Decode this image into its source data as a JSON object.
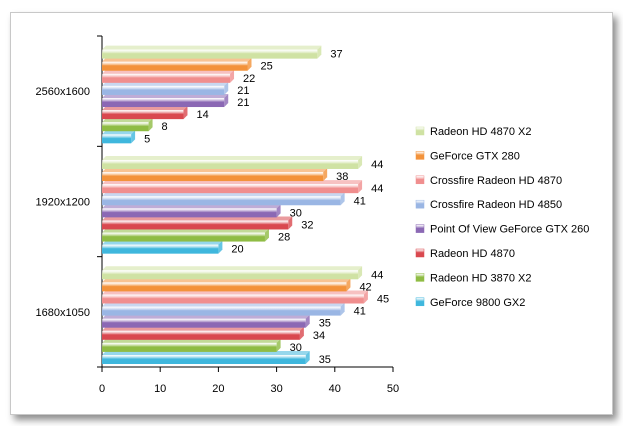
{
  "chart_data": {
    "type": "bar",
    "orientation": "horizontal",
    "categories": [
      "1680x1050",
      "1920x1200",
      "2560x1600"
    ],
    "series": [
      {
        "name": "GeForce 9800 GX2",
        "color": "#3fb7dd",
        "values": [
          35,
          20,
          5
        ]
      },
      {
        "name": "Radeon HD 3870 X2",
        "color": "#8fbc44",
        "values": [
          30,
          28,
          8
        ]
      },
      {
        "name": "Radeon HD 4870",
        "color": "#d9484f",
        "values": [
          34,
          32,
          14
        ]
      },
      {
        "name": "Point Of View GeForce GTX 260",
        "color": "#8b68b4",
        "values": [
          35,
          30,
          21
        ]
      },
      {
        "name": "Crossfire Radeon HD 4850",
        "color": "#9ab6e4",
        "values": [
          41,
          41,
          21
        ]
      },
      {
        "name": "Crossfire Radeon HD 4870",
        "color": "#f08e8e",
        "values": [
          45,
          44,
          22
        ]
      },
      {
        "name": "GeForce GTX 280",
        "color": "#f3923a",
        "values": [
          42,
          38,
          25
        ]
      },
      {
        "name": "Radeon HD 4870 X2",
        "color": "#cfe2a3",
        "values": [
          44,
          44,
          37
        ]
      }
    ],
    "xlim": [
      0,
      50
    ],
    "xticks": [
      0,
      10,
      20,
      30,
      40,
      50
    ],
    "legend_position": "right",
    "grid": false,
    "title": "",
    "xlabel": "",
    "ylabel": ""
  }
}
